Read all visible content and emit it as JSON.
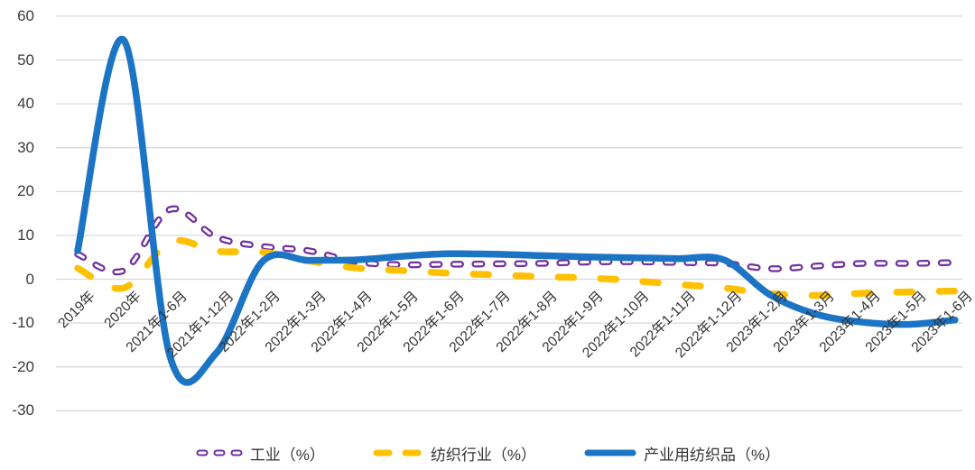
{
  "chart_data": {
    "type": "line",
    "smooth": true,
    "grid": "horizontal-only",
    "legend_position": "bottom-center",
    "ylim": [
      -30,
      60
    ],
    "y_ticks": [
      60,
      50,
      40,
      30,
      20,
      10,
      0,
      -10,
      -20,
      -30
    ],
    "categories": [
      "2019年",
      "2020年",
      "2021年1-6月",
      "2021年1-12月",
      "2022年1-2月",
      "2022年1-3月",
      "2022年1-4月",
      "2022年1-5月",
      "2022年1-6月",
      "2022年1-7月",
      "2022年1-8月",
      "2022年1-9月",
      "2022年1-10月",
      "2022年1-11月",
      "2022年1-12月",
      "2023年1-2月",
      "2023年1-3月",
      "2023年1-4月",
      "2023年1-5月",
      "2023年1-6月"
    ],
    "series": [
      {
        "name": "工业（%）",
        "color": "#7030A0",
        "style": "dashed-hollow",
        "values": [
          5.7,
          2.0,
          15.9,
          9.6,
          7.5,
          6.5,
          4.0,
          3.3,
          3.4,
          3.5,
          3.6,
          3.9,
          4.0,
          3.8,
          3.6,
          2.4,
          3.0,
          3.6,
          3.6,
          3.8
        ]
      },
      {
        "name": "纺织行业（%）",
        "color": "#FFC000",
        "style": "dashed",
        "values": [
          2.5,
          -2.0,
          8.5,
          6.4,
          6.2,
          4.2,
          2.6,
          2.0,
          1.4,
          1.0,
          0.6,
          0.3,
          -0.3,
          -1.2,
          -2.0,
          -3.3,
          -3.7,
          -3.2,
          -2.9,
          -2.7
        ]
      },
      {
        "name": "产业用纺织品（%）",
        "color": "#1B74C4",
        "style": "solid",
        "values": [
          6.5,
          54.5,
          -17.6,
          -16.9,
          4.0,
          4.3,
          4.4,
          5.2,
          5.8,
          5.7,
          5.4,
          5.1,
          4.9,
          4.7,
          4.4,
          -3.6,
          -8.0,
          -9.8,
          -10.3,
          -9.3
        ]
      }
    ]
  },
  "colors": {
    "background": "#FFFFFF",
    "gridline": "#D9D9D9",
    "axis_text": "#3B3B3B",
    "legend_text": "#333333",
    "purple": "#7030A0",
    "yellow": "#FFC000",
    "blue": "#1B74C4"
  }
}
